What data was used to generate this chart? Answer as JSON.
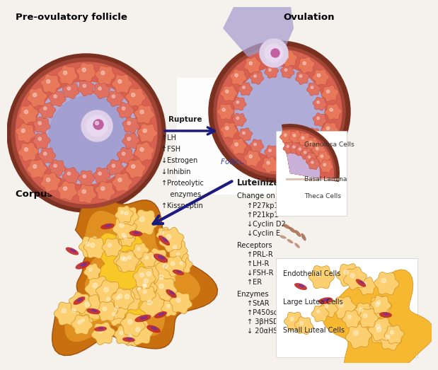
{
  "bg_color": "#f5f2ee",
  "pre_ovulatory_label": "Pre-ovulatory follicle",
  "ovulation_label": "Ovulation",
  "corpus_luteum_label": "Corpus Luteum",
  "rupture_label": "Rupture",
  "follicular_fluid_label": "Follicular Fluid",
  "luteinization_label": "Luteinization",
  "rupture_text_items": [
    "↑LH",
    "↑FSH",
    "↓Estrogen",
    "↓Inhibin",
    "↑Proteolytic",
    "    enzymes",
    "↑Kisspeptin"
  ],
  "lutein_section1_header": "Change on cell cycle proteins",
  "lutein_section1": [
    "↑P27kp1",
    "↑P21kp1",
    "↓Cyclin D2",
    "↓Cyclin E"
  ],
  "lutein_section2_header": "Receptors",
  "lutein_section2": [
    "↑PRL-R",
    "↑LH-R",
    "↓FSH-R",
    "↑ER"
  ],
  "lutein_section3_header": "Enzymes",
  "lutein_section3": [
    "↑StAR",
    "↑P450scc",
    "↑ 3βHSD",
    "↓ 20αHSD"
  ],
  "granulosa_label": "Granulosa Cells",
  "basal_lamina_label": "Basal Lamina",
  "theca_label": "Theca Cells",
  "endothelial_label": "Endothelial Cells",
  "large_lutea_label": "Large Lutea Cells",
  "small_luteal_label": "Small Luteal Cells",
  "colors": {
    "white_bg": "#ffffff",
    "theca_dark": "#7a3020",
    "granulosa_outer": "#d05540",
    "granulosa_cell": "#e8785a",
    "granulosa_cell_ec": "#c05040",
    "follicle_fluid": "#b0acd8",
    "follicle_fluid2": "#9090c8",
    "oocyte_zona": "#ddd0e8",
    "oocyte_dot": "#c060a0",
    "corpus_orange_dark": "#c87010",
    "corpus_orange_mid": "#e09020",
    "corpus_orange_light": "#f5b830",
    "corpus_cell_light": "#fcd878",
    "corpus_cell_ec": "#d09020",
    "vessel_red": "#8B1025",
    "vessel_purple": "#6030a0",
    "arrow_color": "#1a1a80",
    "text_color": "#1a1a1a",
    "label_color": "#000000"
  }
}
